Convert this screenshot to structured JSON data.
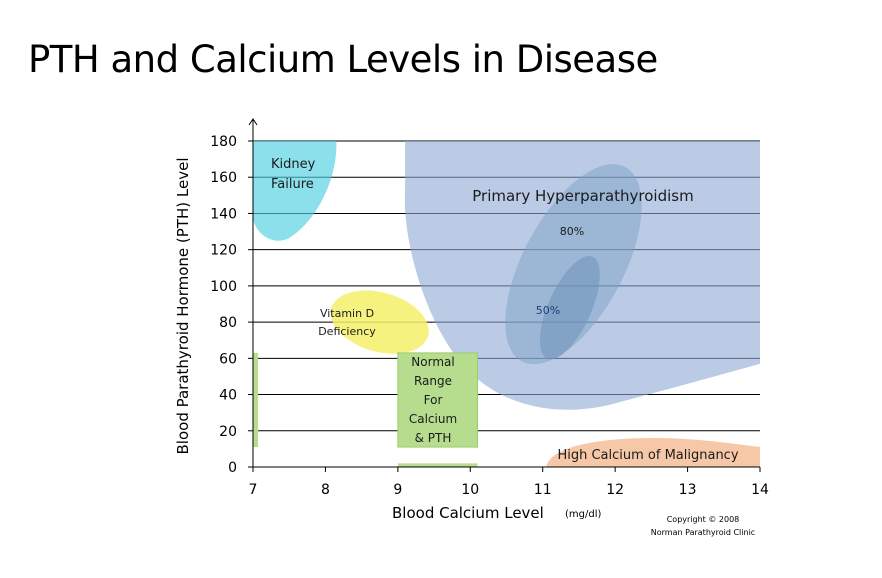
{
  "slide": {
    "title": "PTH and Calcium Levels in Disease"
  },
  "chart_data": {
    "type": "area",
    "title": "PTH and Calcium Levels in Disease",
    "xlabel": "Blood Calcium Level",
    "xlabel_unit": "(mg/dl)",
    "ylabel": "Blood Parathyroid Hormone  (PTH) Level",
    "xlim": [
      7,
      14
    ],
    "ylim": [
      0,
      180
    ],
    "x_ticks": [
      7,
      8,
      9,
      10,
      11,
      12,
      13,
      14
    ],
    "y_ticks": [
      0,
      20,
      40,
      60,
      80,
      100,
      120,
      140,
      160,
      180
    ],
    "grid": "horizontal",
    "legend": "none",
    "regions": [
      {
        "name": "Kidney Failure",
        "lines": [
          "Kidney",
          "Failure"
        ],
        "color": "#4dd0e1",
        "x_range": [
          7.0,
          8.15
        ],
        "y_range": [
          125,
          180
        ]
      },
      {
        "name": "Primary Hyperparathyroidism",
        "lines": [
          "Primary Hyperparathyroidism"
        ],
        "color": "#8ea9d6",
        "x_range": [
          9.1,
          14.0
        ],
        "y_range": [
          30,
          180
        ]
      },
      {
        "name": "80%",
        "lines": [
          "80%"
        ],
        "color": "#7ea2c4",
        "x_range": [
          10.55,
          12.3
        ],
        "y_range": [
          49,
          175
        ]
      },
      {
        "name": "50%",
        "lines": [
          "50%"
        ],
        "color": "#6e93b8",
        "x_range": [
          10.9,
          11.85
        ],
        "y_range": [
          55,
          121
        ]
      },
      {
        "name": "Vitamin D Deficiency",
        "lines": [
          "Vitamin D",
          "Deficiency"
        ],
        "color": "#f5f06a",
        "x_range": [
          8.0,
          9.5
        ],
        "y_range": [
          62,
          98
        ]
      },
      {
        "name": "Normal Range For Calcium & PTH",
        "lines": [
          "Normal",
          "Range",
          "For",
          "Calcium",
          "& PTH"
        ],
        "color": "#b6dd8e",
        "x_range": [
          9.0,
          10.1
        ],
        "y_range": [
          11,
          63
        ]
      },
      {
        "name": "High Calcium of Malignancy",
        "lines": [
          "High Calcium of Malignancy"
        ],
        "color": "#f4b183",
        "x_range": [
          11.05,
          14.0
        ],
        "y_range": [
          0,
          16
        ]
      }
    ],
    "axis_bars": [
      {
        "color": "#b6dd8e",
        "x_range": [
          7.0,
          7.07
        ],
        "y_range": [
          11,
          63
        ]
      },
      {
        "color": "#b6dd8e",
        "x_range": [
          9.0,
          10.1
        ],
        "y_range": [
          0,
          2
        ]
      }
    ],
    "annotations": [
      "Copyright © 2008",
      "Norman Parathyroid Clinic"
    ]
  }
}
